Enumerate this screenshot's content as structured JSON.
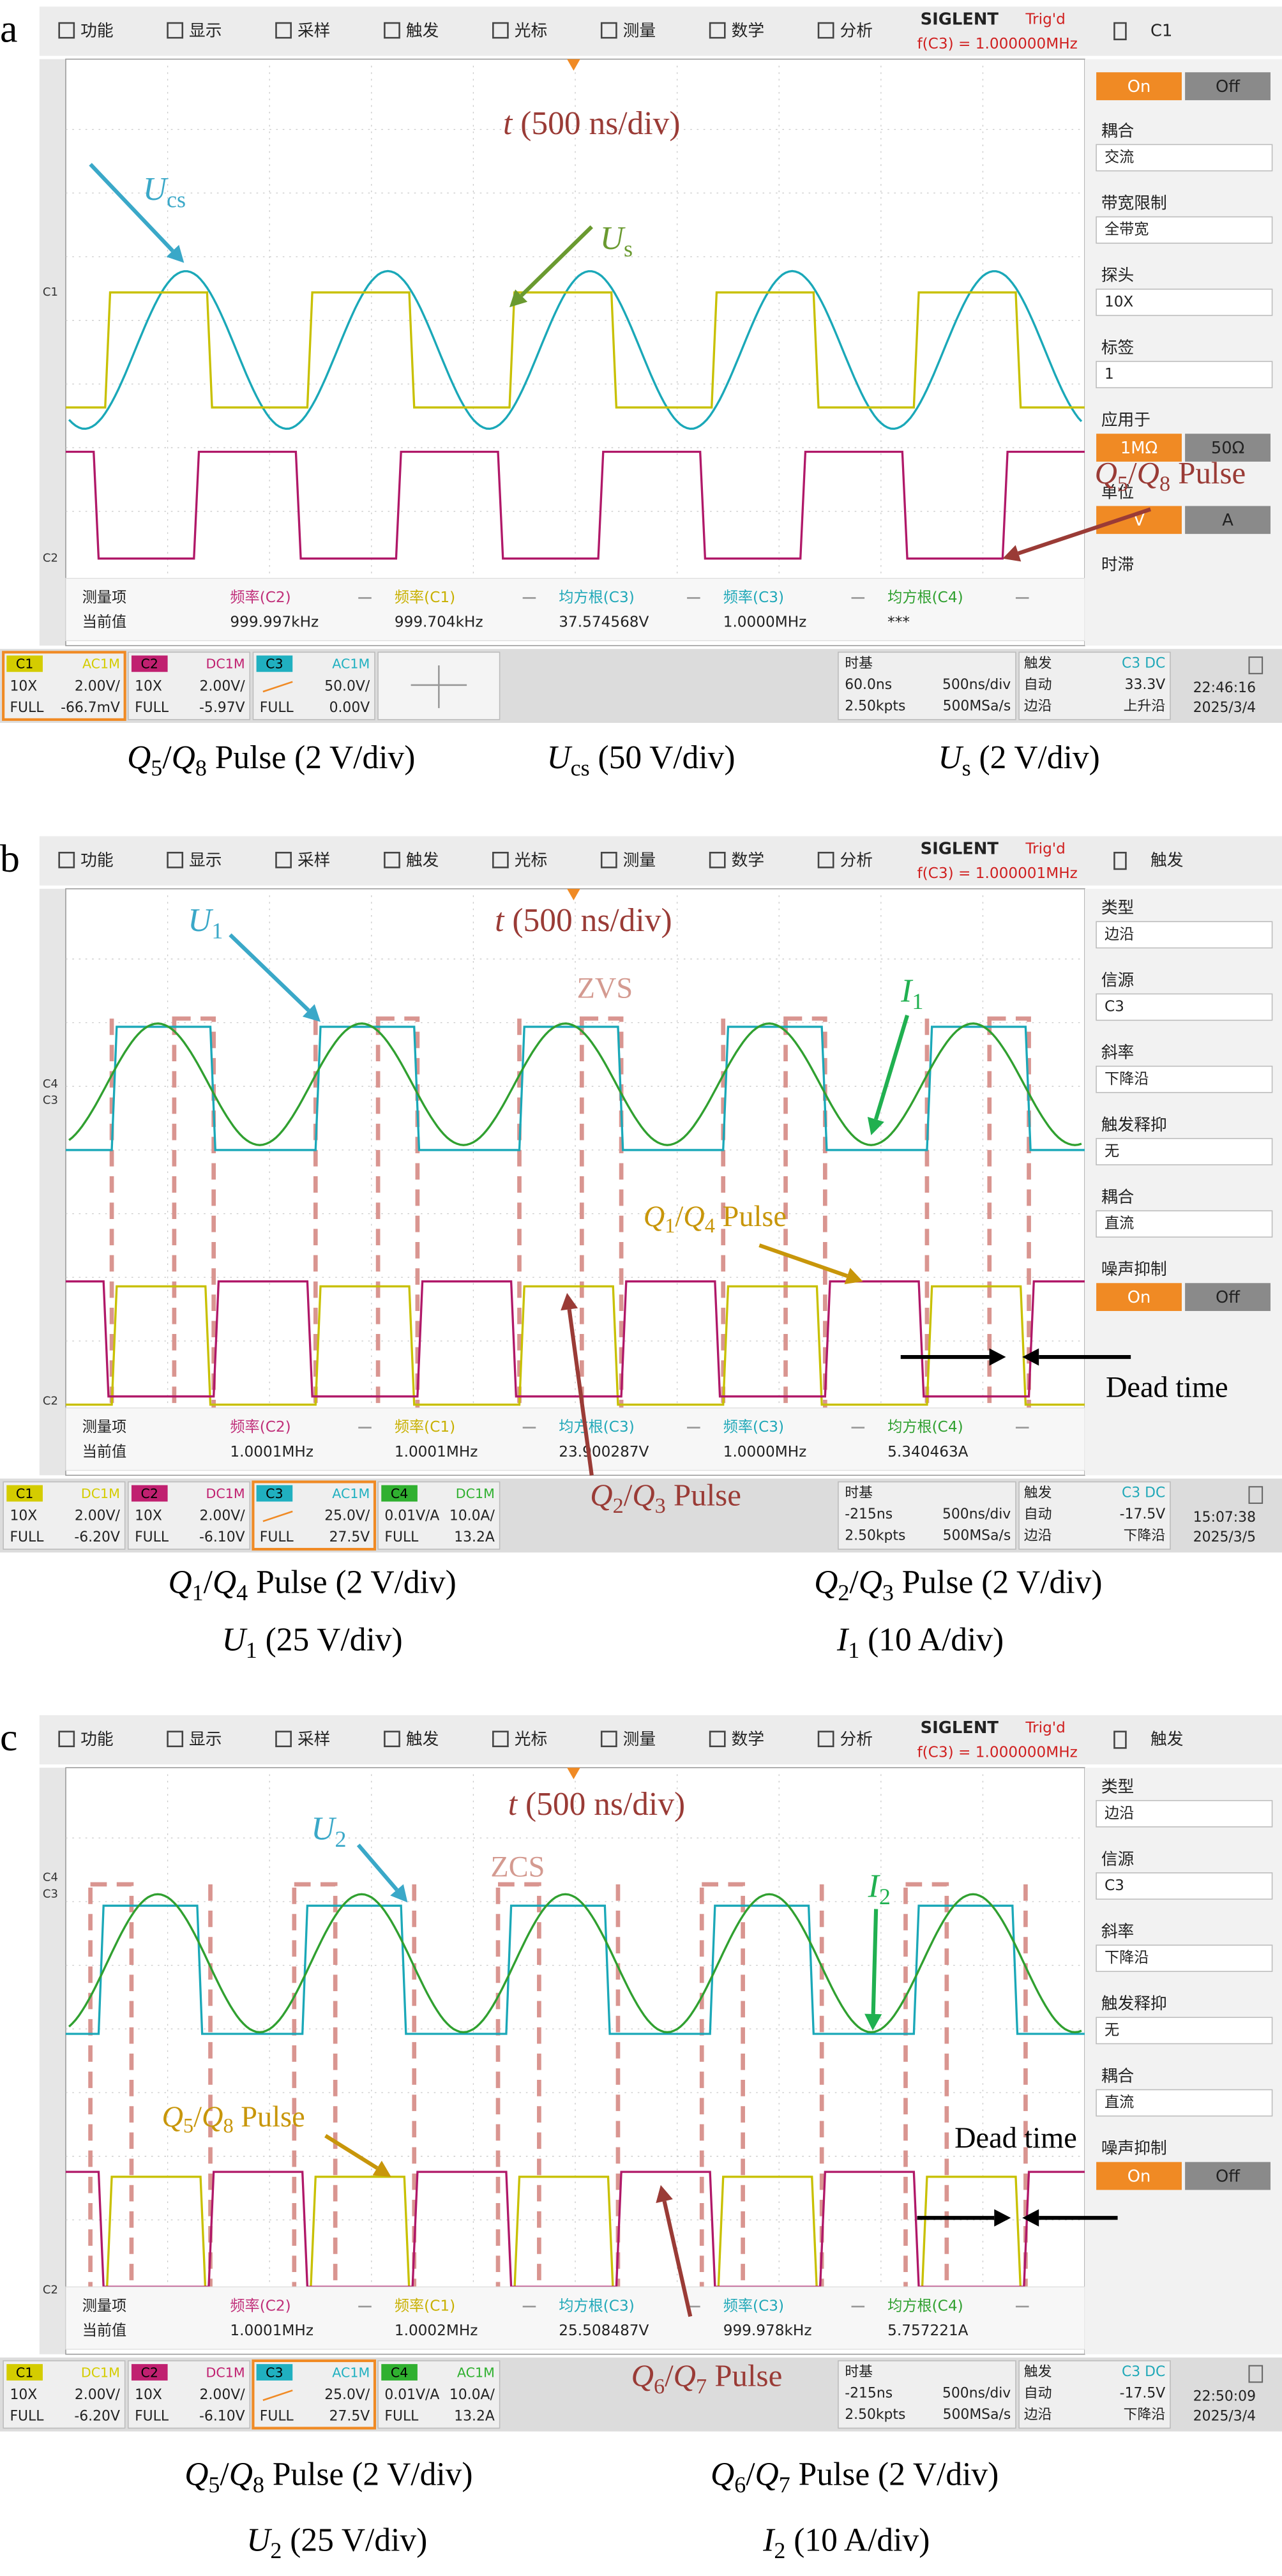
{
  "panels": [
    {
      "letter": "a",
      "menu": [
        "功能",
        "显示",
        "采样",
        "触发",
        "光标",
        "测量",
        "数学",
        "分析"
      ],
      "brand": "SIGLENT",
      "status": "Trig'd",
      "freq": "f(C3) = 1.000000MHz",
      "side_title": "C1",
      "side": [
        {
          "options": [
            "On",
            "Off"
          ]
        },
        {
          "label": "耦合",
          "value": "交流"
        },
        {
          "label": "带宽限制",
          "value": "全带宽"
        },
        {
          "label": "探头",
          "value": "10X"
        },
        {
          "label": "标签",
          "value": "1"
        },
        {
          "label": "应用于",
          "options": [
            "1MΩ",
            "50Ω"
          ]
        },
        {
          "label": "单位",
          "options": [
            "V",
            "A"
          ]
        },
        {
          "label": "时滞"
        }
      ],
      "markers": [
        "C1",
        "C2"
      ],
      "meas": {
        "row_labels": [
          "测量项",
          "当前值"
        ],
        "columns": [
          {
            "name": "频率(C2)",
            "value": "999.997kHz",
            "color": "#c0307a"
          },
          {
            "name": "频率(C1)",
            "value": "999.704kHz",
            "color": "#c8b000"
          },
          {
            "name": "均方根(C3)",
            "value": "37.574568V",
            "color": "#20a8b8"
          },
          {
            "name": "频率(C3)",
            "value": "1.0000MHz",
            "color": "#20a8b8"
          },
          {
            "name": "均方根(C4)",
            "value": "***",
            "color": "#30a030"
          }
        ]
      },
      "channels": [
        {
          "name": "C1",
          "coupling": "AC1M",
          "probe": "10X",
          "scale": "2.00V/",
          "bw": "FULL",
          "offset": "-66.7mV",
          "color": "#d4cc00",
          "selected": true
        },
        {
          "name": "C2",
          "coupling": "DC1M",
          "probe": "10X",
          "scale": "2.00V/",
          "bw": "FULL",
          "offset": "-5.97V",
          "color": "#c02070"
        },
        {
          "name": "C3",
          "coupling": "AC1M",
          "scale": "50.0V/",
          "bw": "FULL",
          "offset": "0.00V",
          "color": "#20b0c0"
        }
      ],
      "timebase": {
        "title": "时基",
        "delay": "60.0ns",
        "scale": "500ns/div",
        "points": "2.50kpts",
        "rate": "500MSa/s"
      },
      "trigger": {
        "title": "触发",
        "source": "C3 DC",
        "mode": "自动",
        "level": "33.3V",
        "type": "边沿",
        "slope": "上升沿"
      },
      "clock": {
        "time": "22:46:16",
        "date": "2025/3/4"
      },
      "annotations": [
        {
          "parts": [
            [
              "t",
              "i"
            ],
            [
              " (500 ns/div)",
              "r"
            ]
          ],
          "color": "#9a3b36"
        },
        {
          "parts": [
            [
              "U",
              "i"
            ],
            [
              "cs",
              "s"
            ]
          ],
          "color": "#3aa8c8"
        },
        {
          "parts": [
            [
              "U",
              "i"
            ],
            [
              "s",
              "s"
            ]
          ],
          "color": "#6a9a30"
        },
        {
          "parts": [
            [
              "Q",
              "i"
            ],
            [
              "5",
              "s"
            ],
            [
              "/",
              "r"
            ],
            [
              "Q",
              "i"
            ],
            [
              "8",
              "s"
            ],
            [
              " Pulse",
              "r"
            ]
          ],
          "color": "#9a3b36"
        }
      ],
      "captions": [
        [
          [
            "Q",
            "i"
          ],
          [
            "5",
            "s"
          ],
          [
            "/",
            "r"
          ],
          [
            "Q",
            "i"
          ],
          [
            "8",
            "s"
          ],
          [
            " Pulse (2 V/div)",
            "r"
          ]
        ],
        [
          [
            "U",
            "i"
          ],
          [
            "cs",
            "s"
          ],
          [
            " (50 V/div)",
            "r"
          ]
        ],
        [
          [
            "U",
            "i"
          ],
          [
            "s",
            "s"
          ],
          [
            " (2 V/div)",
            "r"
          ]
        ]
      ]
    },
    {
      "letter": "b",
      "menu": [
        "功能",
        "显示",
        "采样",
        "触发",
        "光标",
        "测量",
        "数学",
        "分析"
      ],
      "brand": "SIGLENT",
      "status": "Trig'd",
      "freq": "f(C3) = 1.000001MHz",
      "side_title": "触发",
      "side": [
        {
          "label": "类型",
          "value": "边沿"
        },
        {
          "label": "信源",
          "value": "C3"
        },
        {
          "label": "斜率",
          "value": "下降沿"
        },
        {
          "label": "触发释抑",
          "value": "无"
        },
        {
          "label": "耦合",
          "value": "直流"
        },
        {
          "label": "噪声抑制",
          "options": [
            "On",
            "Off"
          ]
        }
      ],
      "markers": [
        "C4",
        "C3",
        "C2"
      ],
      "meas": {
        "row_labels": [
          "测量项",
          "当前值"
        ],
        "columns": [
          {
            "name": "频率(C2)",
            "value": "1.0001MHz",
            "color": "#c0307a"
          },
          {
            "name": "频率(C1)",
            "value": "1.0001MHz",
            "color": "#c8b000"
          },
          {
            "name": "均方根(C3)",
            "value": "23.900287V",
            "color": "#20a8b8"
          },
          {
            "name": "频率(C3)",
            "value": "1.0000MHz",
            "color": "#20a8b8"
          },
          {
            "name": "均方根(C4)",
            "value": "5.340463A",
            "color": "#30a030"
          }
        ]
      },
      "channels": [
        {
          "name": "C1",
          "coupling": "DC1M",
          "probe": "10X",
          "scale": "2.00V/",
          "bw": "FULL",
          "offset": "-6.20V",
          "color": "#d4cc00"
        },
        {
          "name": "C2",
          "coupling": "DC1M",
          "probe": "10X",
          "scale": "2.00V/",
          "bw": "FULL",
          "offset": "-6.10V",
          "color": "#c02070"
        },
        {
          "name": "C3",
          "coupling": "AC1M",
          "scale": "25.0V/",
          "bw": "FULL",
          "offset": "27.5V",
          "color": "#20b0c0",
          "selected": true
        },
        {
          "name": "C4",
          "coupling": "DC1M",
          "probe": "0.01V/A",
          "scale": "10.0A/",
          "bw": "FULL",
          "offset": "13.2A",
          "color": "#30b030"
        }
      ],
      "timebase": {
        "title": "时基",
        "delay": "-215ns",
        "scale": "500ns/div",
        "points": "2.50kpts",
        "rate": "500MSa/s"
      },
      "trigger": {
        "title": "触发",
        "source": "C3 DC",
        "mode": "自动",
        "level": "-17.5V",
        "type": "边沿",
        "slope": "下降沿"
      },
      "clock": {
        "time": "15:07:38",
        "date": "2025/3/5"
      },
      "annotations": [
        {
          "parts": [
            [
              "t",
              "i"
            ],
            [
              " (500 ns/div)",
              "r"
            ]
          ],
          "color": "#9a3b36"
        },
        {
          "parts": [
            [
              "U",
              "i"
            ],
            [
              "1",
              "s"
            ]
          ],
          "color": "#3aa8c8"
        },
        {
          "parts": [
            [
              "ZVS",
              "r"
            ]
          ],
          "color": "#d49a90"
        },
        {
          "parts": [
            [
              "I",
              "i"
            ],
            [
              "1",
              "s"
            ]
          ],
          "color": "#20b050"
        },
        {
          "parts": [
            [
              "Q",
              "i"
            ],
            [
              "1",
              "s"
            ],
            [
              "/",
              "r"
            ],
            [
              "Q",
              "i"
            ],
            [
              "4",
              "s"
            ],
            [
              " Pulse",
              "r"
            ]
          ],
          "color": "#c8960a"
        },
        {
          "parts": [
            [
              "Dead time",
              "r"
            ]
          ],
          "color": "#000000"
        },
        {
          "parts": [
            [
              "Q",
              "i"
            ],
            [
              "2",
              "s"
            ],
            [
              "/",
              "r"
            ],
            [
              "Q",
              "i"
            ],
            [
              "3",
              "s"
            ],
            [
              " Pulse",
              "r"
            ]
          ],
          "color": "#9a3b36"
        }
      ],
      "captions": [
        [
          [
            "Q",
            "i"
          ],
          [
            "1",
            "s"
          ],
          [
            "/",
            "r"
          ],
          [
            "Q",
            "i"
          ],
          [
            "4",
            "s"
          ],
          [
            " Pulse (2 V/div)",
            "r"
          ]
        ],
        [
          [
            "Q",
            "i"
          ],
          [
            "2",
            "s"
          ],
          [
            "/",
            "r"
          ],
          [
            "Q",
            "i"
          ],
          [
            "3",
            "s"
          ],
          [
            " Pulse (2 V/div)",
            "r"
          ]
        ],
        [
          [
            "U",
            "i"
          ],
          [
            "1",
            "s"
          ],
          [
            " (25 V/div)",
            "r"
          ]
        ],
        [
          [
            "I",
            "i"
          ],
          [
            "1",
            "s"
          ],
          [
            " (10 A/div)",
            "r"
          ]
        ]
      ]
    },
    {
      "letter": "c",
      "menu": [
        "功能",
        "显示",
        "采样",
        "触发",
        "光标",
        "测量",
        "数学",
        "分析"
      ],
      "brand": "SIGLENT",
      "status": "Trig'd",
      "freq": "f(C3) = 1.000000MHz",
      "side_title": "触发",
      "side": [
        {
          "label": "类型",
          "value": "边沿"
        },
        {
          "label": "信源",
          "value": "C3"
        },
        {
          "label": "斜率",
          "value": "下降沿"
        },
        {
          "label": "触发释抑",
          "value": "无"
        },
        {
          "label": "耦合",
          "value": "直流"
        },
        {
          "label": "噪声抑制",
          "options": [
            "On",
            "Off"
          ]
        }
      ],
      "markers": [
        "C4",
        "C3",
        "C2"
      ],
      "meas": {
        "row_labels": [
          "测量项",
          "当前值"
        ],
        "columns": [
          {
            "name": "频率(C2)",
            "value": "1.0001MHz",
            "color": "#c0307a"
          },
          {
            "name": "频率(C1)",
            "value": "1.0002MHz",
            "color": "#c8b000"
          },
          {
            "name": "均方根(C3)",
            "value": "25.508487V",
            "color": "#20a8b8"
          },
          {
            "name": "频率(C3)",
            "value": "999.978kHz",
            "color": "#20a8b8"
          },
          {
            "name": "均方根(C4)",
            "value": "5.757221A",
            "color": "#30a030"
          }
        ]
      },
      "channels": [
        {
          "name": "C1",
          "coupling": "DC1M",
          "probe": "10X",
          "scale": "2.00V/",
          "bw": "FULL",
          "offset": "-6.20V",
          "color": "#d4cc00"
        },
        {
          "name": "C2",
          "coupling": "DC1M",
          "probe": "10X",
          "scale": "2.00V/",
          "bw": "FULL",
          "offset": "-6.10V",
          "color": "#c02070"
        },
        {
          "name": "C3",
          "coupling": "AC1M",
          "scale": "25.0V/",
          "bw": "FULL",
          "offset": "27.5V",
          "color": "#20b0c0",
          "selected": true
        },
        {
          "name": "C4",
          "coupling": "AC1M",
          "probe": "0.01V/A",
          "scale": "10.0A/",
          "bw": "FULL",
          "offset": "13.2A",
          "color": "#30b030"
        }
      ],
      "timebase": {
        "title": "时基",
        "delay": "-215ns",
        "scale": "500ns/div",
        "points": "2.50kpts",
        "rate": "500MSa/s"
      },
      "trigger": {
        "title": "触发",
        "source": "C3 DC",
        "mode": "自动",
        "level": "-17.5V",
        "type": "边沿",
        "slope": "下降沿"
      },
      "clock": {
        "time": "22:50:09",
        "date": "2025/3/4"
      },
      "annotations": [
        {
          "parts": [
            [
              "t",
              "i"
            ],
            [
              " (500 ns/div)",
              "r"
            ]
          ],
          "color": "#9a3b36"
        },
        {
          "parts": [
            [
              "U",
              "i"
            ],
            [
              "2",
              "s"
            ]
          ],
          "color": "#3aa8c8"
        },
        {
          "parts": [
            [
              "ZCS",
              "r"
            ]
          ],
          "color": "#d49a90"
        },
        {
          "parts": [
            [
              "I",
              "i"
            ],
            [
              "2",
              "s"
            ]
          ],
          "color": "#20b050"
        },
        {
          "parts": [
            [
              "Q",
              "i"
            ],
            [
              "5",
              "s"
            ],
            [
              "/",
              "r"
            ],
            [
              "Q",
              "i"
            ],
            [
              "8",
              "s"
            ],
            [
              " Pulse",
              "r"
            ]
          ],
          "color": "#c8960a"
        },
        {
          "parts": [
            [
              "Dead time",
              "r"
            ]
          ],
          "color": "#000000"
        },
        {
          "parts": [
            [
              "Q",
              "i"
            ],
            [
              "6",
              "s"
            ],
            [
              "/",
              "r"
            ],
            [
              "Q",
              "i"
            ],
            [
              "7",
              "s"
            ],
            [
              " Pulse",
              "r"
            ]
          ],
          "color": "#9a3b36"
        }
      ],
      "captions": [
        [
          [
            "Q",
            "i"
          ],
          [
            "5",
            "s"
          ],
          [
            "/",
            "r"
          ],
          [
            "Q",
            "i"
          ],
          [
            "8",
            "s"
          ],
          [
            " Pulse (2 V/div)",
            "r"
          ]
        ],
        [
          [
            "Q",
            "i"
          ],
          [
            "6",
            "s"
          ],
          [
            "/",
            "r"
          ],
          [
            "Q",
            "i"
          ],
          [
            "7",
            "s"
          ],
          [
            " Pulse (2 V/div)",
            "r"
          ]
        ],
        [
          [
            "U",
            "i"
          ],
          [
            "2",
            "s"
          ],
          [
            " (25 V/div)",
            "r"
          ]
        ],
        [
          [
            "I",
            "i"
          ],
          [
            "2",
            "s"
          ],
          [
            " (10 A/div)",
            "r"
          ]
        ]
      ]
    }
  ]
}
